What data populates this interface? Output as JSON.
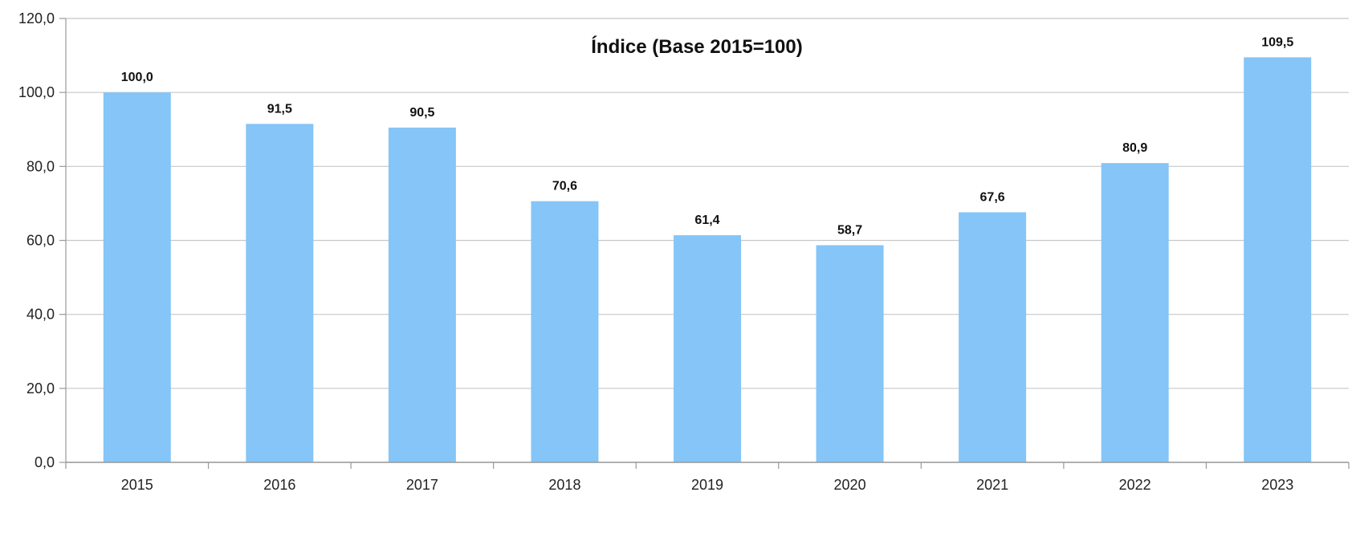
{
  "chart_data": {
    "type": "bar",
    "title": "Índice (Base 2015=100)",
    "xlabel": "",
    "ylabel": "",
    "categories": [
      "2015",
      "2016",
      "2017",
      "2018",
      "2019",
      "2020",
      "2021",
      "2022",
      "2023"
    ],
    "values": [
      100.0,
      91.5,
      90.5,
      70.6,
      61.4,
      58.7,
      67.6,
      80.9,
      109.5
    ],
    "value_labels": [
      "100,0",
      "91,5",
      "90,5",
      "70,6",
      "61,4",
      "58,7",
      "67,6",
      "80,9",
      "109,5"
    ],
    "ylim": [
      0,
      120
    ],
    "yticks": [
      0,
      20,
      40,
      60,
      80,
      100,
      120
    ],
    "ytick_labels": [
      "0,0",
      "20,0",
      "40,0",
      "60,0",
      "80,0",
      "100,0",
      "120,0"
    ],
    "grid": true,
    "legend": "none",
    "bar_color": "#85C5F7",
    "grid_color": "#C8C8C8",
    "axis_color": "#9A9A9A"
  }
}
